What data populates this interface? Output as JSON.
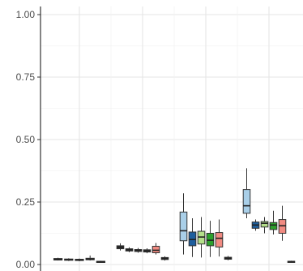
{
  "chart_data": {
    "type": "boxplot",
    "title": "",
    "xlabel": "",
    "ylabel": "",
    "ylim": [
      0,
      1.03
    ],
    "y_ticks": [
      0.0,
      0.25,
      0.5,
      0.75,
      1.0
    ],
    "y_tick_labels": [
      "0.00",
      "0.25",
      "0.50",
      "0.75",
      "1.00"
    ],
    "grid": true,
    "legend": "none",
    "groups": [
      {
        "boxes": [
          {
            "color": "#2a2a2a",
            "min": 0.016,
            "q1": 0.018,
            "median": 0.021,
            "q3": 0.024,
            "max": 0.027
          },
          {
            "color": "#2a2a2a",
            "min": 0.014,
            "q1": 0.017,
            "median": 0.019,
            "q3": 0.022,
            "max": 0.025
          },
          {
            "color": "#2a2a2a",
            "min": 0.013,
            "q1": 0.016,
            "median": 0.018,
            "q3": 0.021,
            "max": 0.024
          },
          {
            "color": "#2a2a2a",
            "min": 0.016,
            "q1": 0.019,
            "median": 0.021,
            "q3": 0.025,
            "max": 0.036
          },
          {
            "color": "#2a2a2a",
            "min": 0.009,
            "q1": 0.01,
            "median": 0.011,
            "q3": 0.013,
            "max": 0.015
          }
        ]
      },
      {
        "boxes": [
          {
            "color": "#2a2a2a",
            "min": 0.056,
            "q1": 0.063,
            "median": 0.069,
            "q3": 0.075,
            "max": 0.085
          },
          {
            "color": "#2a2a2a",
            "min": 0.049,
            "q1": 0.054,
            "median": 0.059,
            "q3": 0.063,
            "max": 0.069
          },
          {
            "color": "#2a2a2a",
            "min": 0.047,
            "q1": 0.052,
            "median": 0.056,
            "q3": 0.06,
            "max": 0.066
          },
          {
            "color": "#2a2a2a",
            "min": 0.045,
            "q1": 0.05,
            "median": 0.054,
            "q3": 0.059,
            "max": 0.065
          },
          {
            "color": "#f28b82",
            "min": 0.04,
            "q1": 0.047,
            "median": 0.057,
            "q3": 0.073,
            "max": 0.086
          },
          {
            "color": "#2a2a2a",
            "min": 0.016,
            "q1": 0.02,
            "median": 0.024,
            "q3": 0.028,
            "max": 0.033
          }
        ]
      },
      {
        "boxes": [
          {
            "color": "#a9cfe8",
            "min": 0.04,
            "q1": 0.095,
            "median": 0.135,
            "q3": 0.21,
            "max": 0.285
          },
          {
            "color": "#1f5f9e",
            "min": 0.03,
            "q1": 0.075,
            "median": 0.1,
            "q3": 0.13,
            "max": 0.185
          },
          {
            "color": "#b4df8a",
            "min": 0.028,
            "q1": 0.082,
            "median": 0.11,
            "q3": 0.133,
            "max": 0.19
          },
          {
            "color": "#2ca02c",
            "min": 0.03,
            "q1": 0.075,
            "median": 0.097,
            "q3": 0.125,
            "max": 0.175
          },
          {
            "color": "#f28b82",
            "min": 0.032,
            "q1": 0.07,
            "median": 0.105,
            "q3": 0.128,
            "max": 0.18
          },
          {
            "color": "#2a2a2a",
            "min": 0.017,
            "q1": 0.021,
            "median": 0.025,
            "q3": 0.029,
            "max": 0.034
          }
        ]
      },
      {
        "boxes": [
          {
            "color": "#a9cfe8",
            "min": 0.185,
            "q1": 0.205,
            "median": 0.235,
            "q3": 0.3,
            "max": 0.385
          },
          {
            "color": "#1f5f9e",
            "min": 0.135,
            "q1": 0.145,
            "median": 0.158,
            "q3": 0.17,
            "max": 0.18
          },
          {
            "color": "#b4df8a",
            "min": 0.125,
            "q1": 0.15,
            "median": 0.165,
            "q3": 0.172,
            "max": 0.19
          },
          {
            "color": "#2ca02c",
            "min": 0.12,
            "q1": 0.14,
            "median": 0.158,
            "q3": 0.168,
            "max": 0.215
          },
          {
            "color": "#f28b82",
            "min": 0.095,
            "q1": 0.125,
            "median": 0.155,
            "q3": 0.18,
            "max": 0.235
          },
          {
            "color": "#2a2a2a",
            "min": 0.009,
            "q1": 0.01,
            "median": 0.012,
            "q3": 0.013,
            "max": 0.015
          }
        ]
      }
    ]
  }
}
